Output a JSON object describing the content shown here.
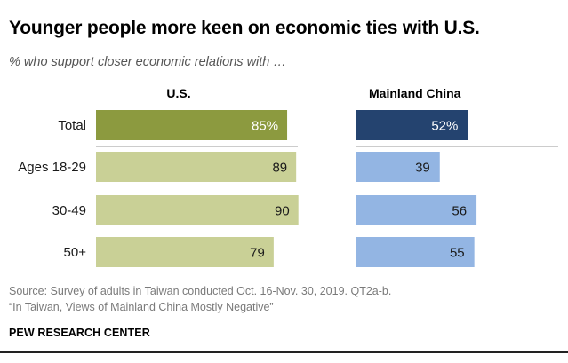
{
  "title": "Younger people more keen on economic ties with U.S.",
  "subtitle": "% who support closer economic relations with …",
  "chart_data": {
    "type": "bar",
    "categories": [
      "Total",
      "Ages 18-29",
      "30-49",
      "50+"
    ],
    "series": [
      {
        "name": "U.S.",
        "values": [
          85,
          89,
          90,
          79
        ],
        "labels": [
          "85%",
          "89",
          "90",
          "79"
        ],
        "colors": [
          "#8c9a3f",
          "#c9d096",
          "#c9d096",
          "#c9d096"
        ]
      },
      {
        "name": "Mainland China",
        "values": [
          52,
          39,
          56,
          55
        ],
        "labels": [
          "52%",
          "39",
          "56",
          "55"
        ],
        "colors": [
          "#24436f",
          "#93b5e3",
          "#93b5e3",
          "#93b5e3"
        ]
      }
    ],
    "label_colors": {
      "highlight": "#ffffff",
      "normal": "#1a1a1a"
    }
  },
  "source_line1": "Source: Survey of adults in Taiwan conducted Oct. 16-Nov. 30, 2019. QT2a-b.",
  "source_line2": "“In Taiwan, Views of Mainland China Mostly Negative”",
  "organization": "PEW RESEARCH CENTER"
}
